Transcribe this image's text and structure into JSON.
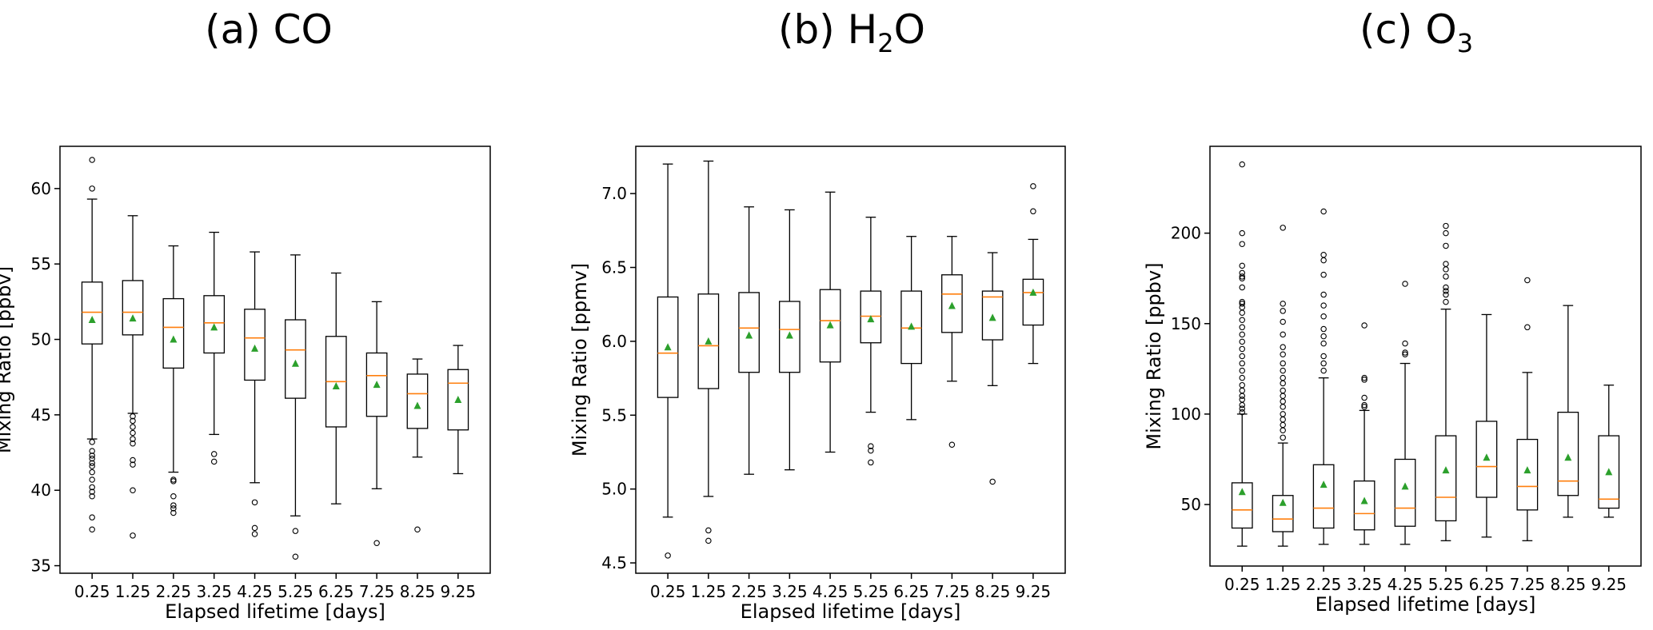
{
  "chart_data": [
    {
      "type": "box",
      "title": "(a) CO",
      "xlabel": "Elapsed lifetime [days]",
      "ylabel": "Mixing Ratio [ppbv]",
      "ylim": [
        34.5,
        62.8
      ],
      "yticks": [
        35,
        40,
        45,
        50,
        55,
        60
      ],
      "categories": [
        "0.25",
        "1.25",
        "2.25",
        "3.25",
        "4.25",
        "5.25",
        "6.25",
        "7.25",
        "8.25",
        "9.25"
      ],
      "boxes": [
        {
          "whislo": 43.4,
          "q1": 49.7,
          "med": 51.8,
          "q3": 53.8,
          "whishi": 59.3,
          "mean": 51.3,
          "fliers": [
            61.9,
            60.0,
            43.2,
            42.6,
            42.3,
            42.1,
            41.8,
            41.6,
            41.2,
            40.7,
            40.2,
            39.9,
            39.6,
            38.2,
            37.4
          ]
        },
        {
          "whislo": 45.1,
          "q1": 50.3,
          "med": 51.8,
          "q3": 53.9,
          "whishi": 58.2,
          "mean": 51.4,
          "fliers": [
            44.9,
            44.6,
            44.2,
            43.8,
            43.4,
            43.1,
            42.0,
            41.7,
            40.0,
            37.0
          ]
        },
        {
          "whislo": 41.2,
          "q1": 48.1,
          "med": 50.8,
          "q3": 52.7,
          "whishi": 56.2,
          "mean": 50.0,
          "fliers": [
            40.7,
            40.6,
            39.6,
            39.0,
            38.8,
            38.5
          ]
        },
        {
          "whislo": 43.7,
          "q1": 49.1,
          "med": 51.1,
          "q3": 52.9,
          "whishi": 57.1,
          "mean": 50.8,
          "fliers": [
            42.4,
            41.9
          ]
        },
        {
          "whislo": 40.5,
          "q1": 47.3,
          "med": 50.1,
          "q3": 52.0,
          "whishi": 55.8,
          "mean": 49.4,
          "fliers": [
            39.2,
            37.5,
            37.1
          ]
        },
        {
          "whislo": 38.3,
          "q1": 46.1,
          "med": 49.3,
          "q3": 51.3,
          "whishi": 55.6,
          "mean": 48.4,
          "fliers": [
            37.3,
            35.6
          ]
        },
        {
          "whislo": 39.1,
          "q1": 44.2,
          "med": 47.2,
          "q3": 50.2,
          "whishi": 54.4,
          "mean": 46.9,
          "fliers": []
        },
        {
          "whislo": 40.1,
          "q1": 44.9,
          "med": 47.6,
          "q3": 49.1,
          "whishi": 52.5,
          "mean": 47.0,
          "fliers": [
            36.5
          ]
        },
        {
          "whislo": 42.2,
          "q1": 44.1,
          "med": 46.4,
          "q3": 47.7,
          "whishi": 48.7,
          "mean": 45.6,
          "fliers": [
            37.4
          ]
        },
        {
          "whislo": 41.1,
          "q1": 44.0,
          "med": 47.1,
          "q3": 48.0,
          "whishi": 49.6,
          "mean": 46.0,
          "fliers": []
        }
      ]
    },
    {
      "type": "box",
      "title": "(b) H",
      "title_sub": "2",
      "title_end": "O",
      "xlabel": "Elapsed lifetime [days]",
      "ylabel": "Mixing Ratio [ppmv]",
      "ylim": [
        4.43,
        7.32
      ],
      "yticks": [
        4.5,
        5.0,
        5.5,
        6.0,
        6.5,
        7.0
      ],
      "ytick_labels": [
        "4.5",
        "5.0",
        "5.5",
        "6.0",
        "6.5",
        "7.0"
      ],
      "categories": [
        "0.25",
        "1.25",
        "2.25",
        "3.25",
        "4.25",
        "5.25",
        "6.25",
        "7.25",
        "8.25",
        "9.25"
      ],
      "boxes": [
        {
          "whislo": 4.81,
          "q1": 5.62,
          "med": 5.92,
          "q3": 6.3,
          "whishi": 7.2,
          "mean": 5.96,
          "fliers": [
            4.55
          ]
        },
        {
          "whislo": 4.95,
          "q1": 5.68,
          "med": 5.97,
          "q3": 6.32,
          "whishi": 7.22,
          "mean": 6.0,
          "fliers": [
            4.72,
            4.65
          ]
        },
        {
          "whislo": 5.1,
          "q1": 5.79,
          "med": 6.09,
          "q3": 6.33,
          "whishi": 6.91,
          "mean": 6.04,
          "fliers": []
        },
        {
          "whislo": 5.13,
          "q1": 5.79,
          "med": 6.08,
          "q3": 6.27,
          "whishi": 6.89,
          "mean": 6.04,
          "fliers": []
        },
        {
          "whislo": 5.25,
          "q1": 5.86,
          "med": 6.14,
          "q3": 6.35,
          "whishi": 7.01,
          "mean": 6.11,
          "fliers": []
        },
        {
          "whislo": 5.52,
          "q1": 5.99,
          "med": 6.17,
          "q3": 6.34,
          "whishi": 6.84,
          "mean": 6.15,
          "fliers": [
            5.29,
            5.26,
            5.18
          ]
        },
        {
          "whislo": 5.47,
          "q1": 5.85,
          "med": 6.09,
          "q3": 6.34,
          "whishi": 6.71,
          "mean": 6.1,
          "fliers": []
        },
        {
          "whislo": 5.73,
          "q1": 6.06,
          "med": 6.32,
          "q3": 6.45,
          "whishi": 6.71,
          "mean": 6.24,
          "fliers": [
            5.3
          ]
        },
        {
          "whislo": 5.7,
          "q1": 6.01,
          "med": 6.3,
          "q3": 6.34,
          "whishi": 6.6,
          "mean": 6.16,
          "fliers": [
            5.05
          ]
        },
        {
          "whislo": 5.85,
          "q1": 6.11,
          "med": 6.33,
          "q3": 6.42,
          "whishi": 6.69,
          "mean": 6.33,
          "fliers": [
            7.05,
            6.88
          ]
        }
      ]
    },
    {
      "type": "box",
      "title": "(c) O",
      "title_sub": "3",
      "title_end": "",
      "xlabel": "Elapsed lifetime [days]",
      "ylabel": "Mixing Ratio [ppbv]",
      "ylim": [
        16,
        248
      ],
      "yticks": [
        50,
        100,
        150,
        200
      ],
      "categories": [
        "0.25",
        "1.25",
        "2.25",
        "3.25",
        "4.25",
        "5.25",
        "6.25",
        "7.25",
        "8.25",
        "9.25"
      ],
      "boxes": [
        {
          "whislo": 27,
          "q1": 37,
          "med": 47,
          "q3": 62,
          "whishi": 100,
          "mean": 57,
          "fliers": [
            238,
            200,
            194,
            182,
            178,
            176,
            175,
            170,
            162,
            161,
            159,
            156,
            152,
            148,
            144,
            140,
            136,
            132,
            128,
            124,
            120,
            116,
            113,
            110,
            108,
            105,
            103,
            101
          ]
        },
        {
          "whislo": 27,
          "q1": 35,
          "med": 42,
          "q3": 55,
          "whishi": 84,
          "mean": 51,
          "fliers": [
            203,
            161,
            157,
            151,
            144,
            137,
            133,
            128,
            124,
            120,
            117,
            113,
            110,
            107,
            104,
            100,
            97,
            94,
            91,
            87
          ]
        },
        {
          "whislo": 28,
          "q1": 37,
          "med": 48,
          "q3": 72,
          "whishi": 120,
          "mean": 61,
          "fliers": [
            212,
            188,
            185,
            177,
            166,
            160,
            154,
            147,
            143,
            139,
            132,
            128,
            124
          ]
        },
        {
          "whislo": 28,
          "q1": 36,
          "med": 45,
          "q3": 63,
          "whishi": 102,
          "mean": 52,
          "fliers": [
            149,
            120,
            119,
            109,
            105,
            104
          ]
        },
        {
          "whislo": 28,
          "q1": 38,
          "med": 48,
          "q3": 75,
          "whishi": 128,
          "mean": 60,
          "fliers": [
            172,
            139,
            134,
            133
          ]
        },
        {
          "whislo": 30,
          "q1": 41,
          "med": 54,
          "q3": 88,
          "whishi": 158,
          "mean": 69,
          "fliers": [
            204,
            200,
            193,
            183,
            180,
            176,
            170,
            168,
            166,
            162
          ]
        },
        {
          "whislo": 32,
          "q1": 54,
          "med": 71,
          "q3": 96,
          "whishi": 155,
          "mean": 76,
          "fliers": []
        },
        {
          "whislo": 30,
          "q1": 47,
          "med": 60,
          "q3": 86,
          "whishi": 123,
          "mean": 69,
          "fliers": [
            174,
            148
          ]
        },
        {
          "whislo": 43,
          "q1": 55,
          "med": 63,
          "q3": 101,
          "whishi": 160,
          "mean": 76,
          "fliers": []
        },
        {
          "whislo": 43,
          "q1": 48,
          "med": 53,
          "q3": 88,
          "whishi": 116,
          "mean": 68,
          "fliers": []
        }
      ]
    }
  ],
  "colors": {
    "median": "#ff7f0e",
    "mean": "#2ca02c",
    "box": "#000000",
    "frame": "#000000"
  }
}
